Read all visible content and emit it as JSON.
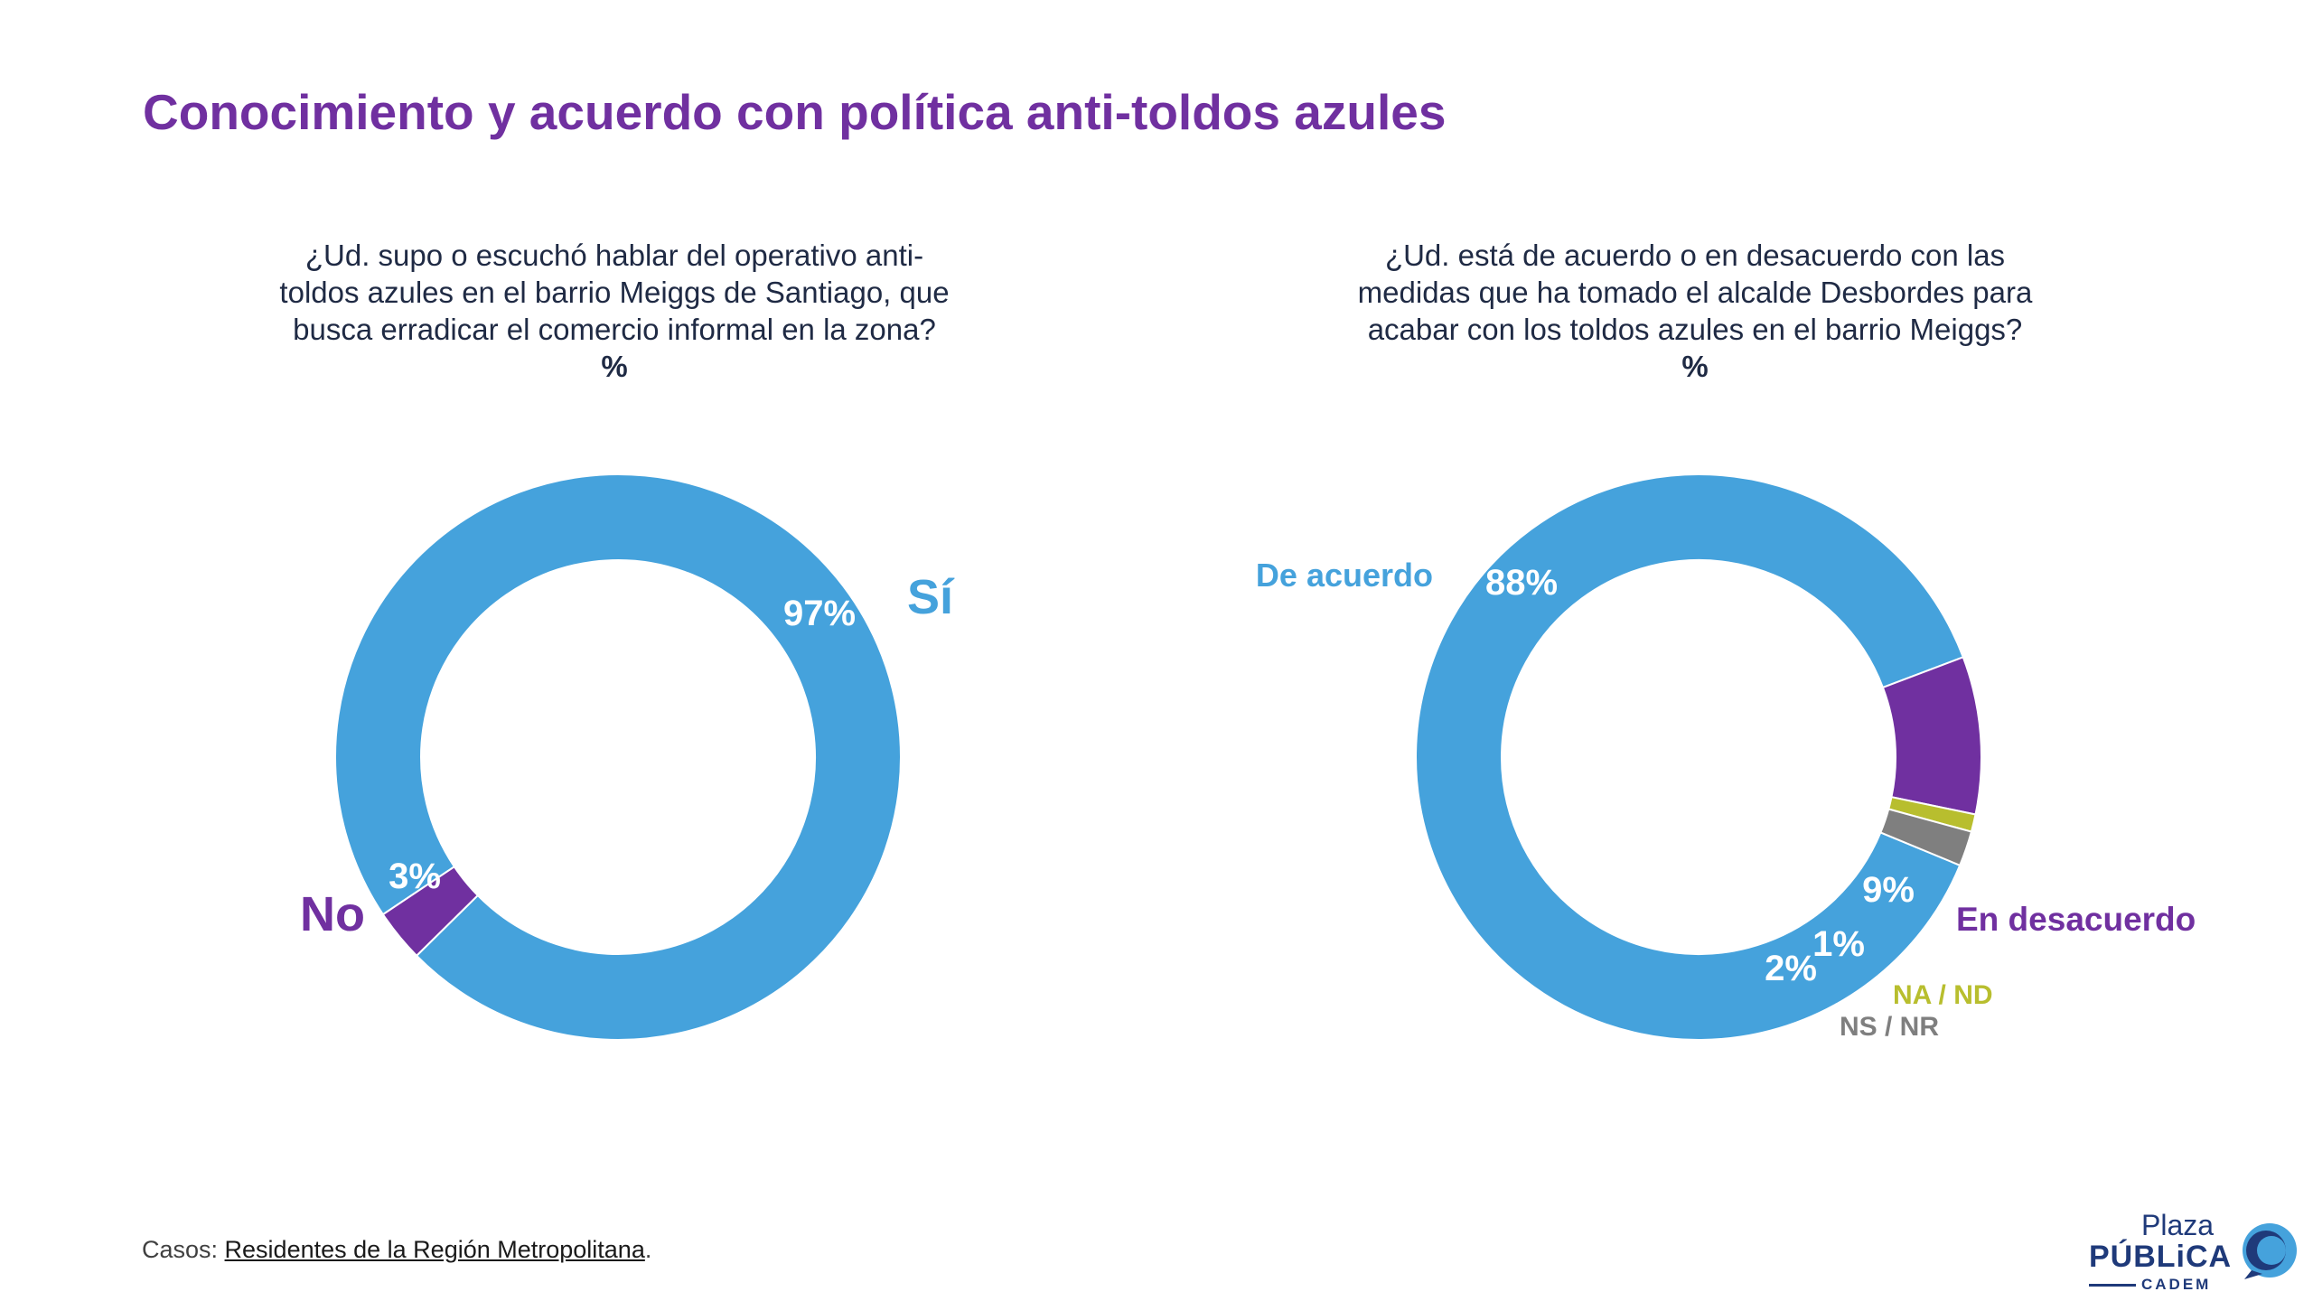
{
  "title": "Conocimiento y acuerdo con política anti-toldos azules",
  "questions": {
    "left_lines": [
      "¿Ud. supo o escuchó hablar del operativo anti-",
      "toldos azules en el barrio Meiggs de Santiago, que",
      "busca erradicar el comercio informal en la zona?"
    ],
    "right_lines": [
      "¿Ud. está de acuerdo o en desacuerdo con las",
      "medidas que ha tomado el alcalde Desbordes para",
      "acabar con los toldos azules en el barrio Meiggs?"
    ],
    "unit": "%"
  },
  "chart_data": [
    {
      "type": "pie",
      "donut": true,
      "slices": [
        {
          "label": "Sí",
          "value": 97,
          "value_label": "97%",
          "color": "#45a2dc"
        },
        {
          "label": "No",
          "value": 3,
          "value_label": "3%",
          "color": "#7030a0"
        }
      ]
    },
    {
      "type": "pie",
      "donut": true,
      "slices": [
        {
          "label": "De acuerdo",
          "value": 88,
          "value_label": "88%",
          "color": "#45a2dc"
        },
        {
          "label": "En desacuerdo",
          "value": 9,
          "value_label": "9%",
          "color": "#7030a0"
        },
        {
          "label": "NA / ND",
          "value": 1,
          "value_label": "1%",
          "color": "#b8be2e"
        },
        {
          "label": "NS / NR",
          "value": 2,
          "value_label": "2%",
          "color": "#7f7f7f"
        }
      ]
    }
  ],
  "footer": {
    "prefix": "Casos: ",
    "link": "Residentes de la Región Metropolitana",
    "suffix": "."
  },
  "logo": {
    "plaza": "Plaza",
    "publica": "PÚBLiCA",
    "cadem": "CADEM"
  }
}
